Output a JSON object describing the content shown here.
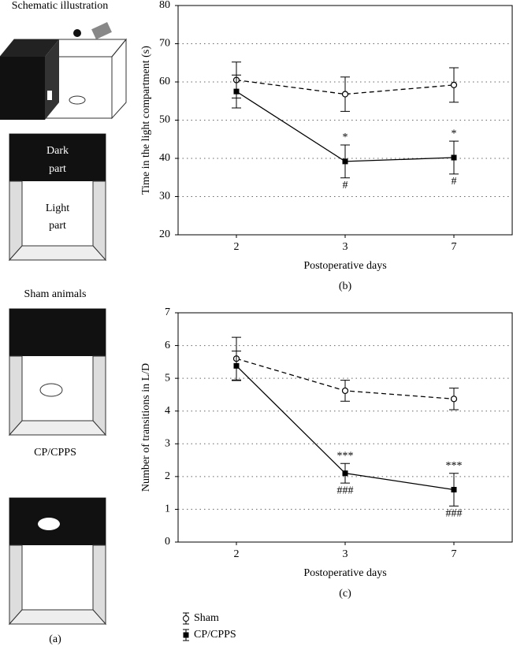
{
  "panel_a": {
    "title": "Schematic illustration",
    "dark_label": [
      "Dark",
      "part"
    ],
    "light_label": [
      "Light",
      "part"
    ],
    "sham_label": "Sham animals",
    "cp_label": "CP/CPPS",
    "caption": "(a)"
  },
  "chart_data": [
    {
      "type": "line",
      "caption": "(b)",
      "x_label": "Postoperative days",
      "y_label": "Time in the light compartment (s)",
      "categories": [
        "2",
        "3",
        "7"
      ],
      "ylim": [
        20,
        80
      ],
      "yticks": [
        20,
        30,
        40,
        50,
        60,
        70,
        80
      ],
      "grid": true,
      "series": [
        {
          "color": "#000000",
          "line_style": "dashed",
          "marker": "open-circle",
          "values": [
            60.5,
            56.8,
            59.2
          ],
          "errors": [
            4.7,
            4.5,
            4.5
          ]
        },
        {
          "color": "#000000",
          "line_style": "solid",
          "marker": "filled-square",
          "values": [
            57.5,
            39.2,
            40.2
          ],
          "errors": [
            4.3,
            4.3,
            4.3
          ]
        }
      ],
      "annotations": [
        {
          "text": "*",
          "category": 1,
          "series": 1,
          "side": "above"
        },
        {
          "text": "*",
          "category": 2,
          "series": 1,
          "side": "above"
        },
        {
          "text": "#",
          "category": 1,
          "series": 1,
          "side": "below"
        },
        {
          "text": "#",
          "category": 2,
          "series": 1,
          "side": "below"
        }
      ]
    },
    {
      "type": "line",
      "caption": "(c)",
      "x_label": "Postoperative days",
      "y_label": "Number of transitions in L/D",
      "categories": [
        "2",
        "3",
        "7"
      ],
      "ylim": [
        0,
        7
      ],
      "yticks": [
        0,
        1,
        2,
        3,
        4,
        5,
        6,
        7
      ],
      "grid": true,
      "series": [
        {
          "name": "Sham",
          "color": "#000000",
          "line_style": "dashed",
          "marker": "open-circle",
          "values": [
            5.6,
            4.62,
            4.37
          ],
          "errors": [
            0.65,
            0.32,
            0.33
          ]
        },
        {
          "name": "CP/CPPS",
          "color": "#000000",
          "line_style": "solid",
          "marker": "filled-square",
          "values": [
            5.38,
            2.1,
            1.6
          ],
          "errors": [
            0.45,
            0.3,
            0.5
          ]
        }
      ],
      "annotations": [
        {
          "text": "***",
          "category": 1,
          "series": 1,
          "side": "above"
        },
        {
          "text": "***",
          "category": 2,
          "series": 1,
          "side": "above"
        },
        {
          "text": "###",
          "category": 1,
          "series": 1,
          "side": "below"
        },
        {
          "text": "###",
          "category": 2,
          "series": 1,
          "side": "below"
        }
      ]
    }
  ]
}
